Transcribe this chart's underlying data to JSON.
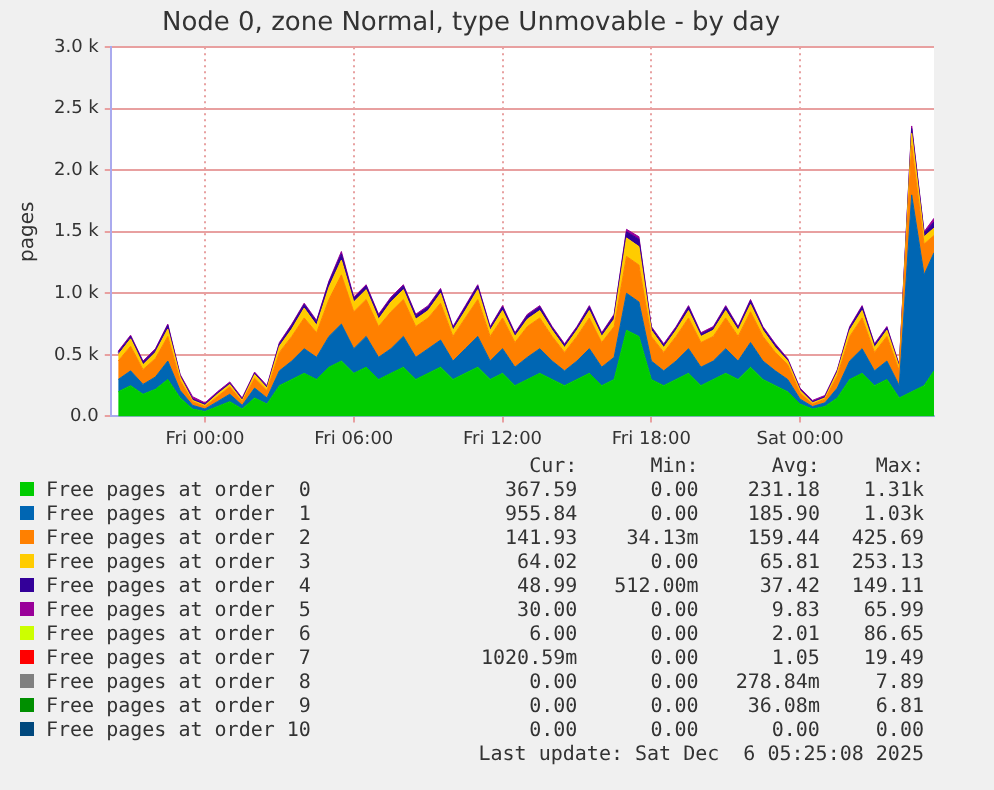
{
  "chart_data": {
    "type": "area",
    "stacked": true,
    "title": "Node 0, zone Normal, type Unmovable - by day",
    "ylabel": "pages",
    "marker": "none",
    "grid": true,
    "legend": "bottom",
    "x": [
      "2025-12-04T20:30",
      "2025-12-04T21:00",
      "2025-12-04T21:30",
      "2025-12-04T22:00",
      "2025-12-04T22:30",
      "2025-12-04T23:00",
      "2025-12-04T23:30",
      "2025-12-05T00:00",
      "2025-12-05T00:30",
      "2025-12-05T01:00",
      "2025-12-05T01:30",
      "2025-12-05T02:00",
      "2025-12-05T02:30",
      "2025-12-05T03:00",
      "2025-12-05T03:30",
      "2025-12-05T04:00",
      "2025-12-05T04:30",
      "2025-12-05T05:00",
      "2025-12-05T05:30",
      "2025-12-05T06:00",
      "2025-12-05T06:30",
      "2025-12-05T07:00",
      "2025-12-05T07:30",
      "2025-12-05T08:00",
      "2025-12-05T08:30",
      "2025-12-05T09:00",
      "2025-12-05T09:30",
      "2025-12-05T10:00",
      "2025-12-05T10:30",
      "2025-12-05T11:00",
      "2025-12-05T11:30",
      "2025-12-05T12:00",
      "2025-12-05T12:30",
      "2025-12-05T13:00",
      "2025-12-05T13:30",
      "2025-12-05T14:00",
      "2025-12-05T14:30",
      "2025-12-05T15:00",
      "2025-12-05T15:30",
      "2025-12-05T16:00",
      "2025-12-05T16:30",
      "2025-12-05T17:00",
      "2025-12-05T17:30",
      "2025-12-05T18:00",
      "2025-12-05T18:30",
      "2025-12-05T19:00",
      "2025-12-05T19:30",
      "2025-12-05T20:00",
      "2025-12-05T20:30",
      "2025-12-05T21:00",
      "2025-12-05T21:30",
      "2025-12-05T22:00",
      "2025-12-05T22:30",
      "2025-12-05T23:00",
      "2025-12-05T23:30",
      "2025-12-06T00:00",
      "2025-12-06T00:30",
      "2025-12-06T01:00",
      "2025-12-06T01:30",
      "2025-12-06T02:00",
      "2025-12-06T02:30",
      "2025-12-06T03:00",
      "2025-12-06T03:30",
      "2025-12-06T04:00",
      "2025-12-06T04:30",
      "2025-12-06T05:00",
      "2025-12-06T05:24"
    ],
    "xlim": [
      "2025-12-04T20:12",
      "2025-12-06T05:24"
    ],
    "xticks": [
      {
        "value": "2025-12-05T00:00",
        "label": "Fri 00:00"
      },
      {
        "value": "2025-12-05T06:00",
        "label": "Fri 06:00"
      },
      {
        "value": "2025-12-05T12:00",
        "label": "Fri 12:00"
      },
      {
        "value": "2025-12-05T18:00",
        "label": "Fri 18:00"
      },
      {
        "value": "2025-12-06T00:00",
        "label": "Sat 00:00"
      }
    ],
    "ylim": [
      0,
      3000
    ],
    "yticks": [
      {
        "value": 0,
        "label": "0.0"
      },
      {
        "value": 500,
        "label": "0.5 k"
      },
      {
        "value": 1000,
        "label": "1.0 k"
      },
      {
        "value": 1500,
        "label": "1.5 k"
      },
      {
        "value": 2000,
        "label": "2.0 k"
      },
      {
        "value": 2500,
        "label": "2.5 k"
      },
      {
        "value": 3000,
        "label": "3.0 k"
      }
    ],
    "series": [
      {
        "name": "Free pages at order  0",
        "color": "#00cc00",
        "values": [
          200,
          250,
          180,
          220,
          300,
          150,
          60,
          40,
          80,
          120,
          60,
          150,
          100,
          250,
          300,
          350,
          300,
          400,
          450,
          350,
          400,
          300,
          350,
          400,
          300,
          350,
          400,
          300,
          350,
          400,
          300,
          350,
          250,
          300,
          350,
          300,
          250,
          300,
          350,
          250,
          300,
          700,
          650,
          300,
          250,
          300,
          350,
          250,
          300,
          350,
          300,
          400,
          300,
          250,
          200,
          100,
          60,
          80,
          150,
          300,
          350,
          250,
          300,
          150,
          200,
          250,
          370
        ]
      },
      {
        "name": "Free pages at order  1",
        "color": "#0066b3",
        "values": [
          100,
          120,
          80,
          100,
          150,
          60,
          30,
          20,
          40,
          60,
          30,
          80,
          50,
          120,
          150,
          200,
          180,
          250,
          300,
          200,
          250,
          180,
          200,
          250,
          180,
          200,
          220,
          150,
          200,
          250,
          150,
          200,
          150,
          180,
          200,
          150,
          120,
          150,
          200,
          150,
          180,
          300,
          280,
          150,
          120,
          150,
          200,
          150,
          150,
          200,
          150,
          200,
          150,
          120,
          100,
          40,
          20,
          30,
          80,
          150,
          200,
          120,
          150,
          100,
          1600,
          900,
          960
        ]
      },
      {
        "name": "Free pages at order  2",
        "color": "#ff8000",
        "values": [
          150,
          200,
          120,
          150,
          200,
          80,
          30,
          20,
          40,
          60,
          30,
          80,
          60,
          150,
          200,
          250,
          200,
          300,
          400,
          300,
          300,
          250,
          300,
          300,
          250,
          250,
          300,
          200,
          250,
          300,
          200,
          250,
          200,
          250,
          250,
          200,
          150,
          200,
          250,
          200,
          250,
          300,
          300,
          200,
          150,
          200,
          250,
          200,
          200,
          250,
          200,
          250,
          200,
          150,
          120,
          50,
          20,
          30,
          100,
          200,
          250,
          150,
          200,
          120,
          400,
          250,
          140
        ]
      },
      {
        "name": "Free pages at order  3",
        "color": "#ffcc00",
        "values": [
          50,
          60,
          40,
          50,
          60,
          30,
          10,
          10,
          20,
          20,
          10,
          30,
          20,
          50,
          60,
          80,
          60,
          100,
          120,
          80,
          80,
          60,
          80,
          80,
          60,
          60,
          80,
          50,
          60,
          80,
          50,
          60,
          50,
          60,
          60,
          50,
          40,
          50,
          60,
          50,
          60,
          150,
          150,
          50,
          40,
          50,
          60,
          50,
          50,
          60,
          50,
          60,
          50,
          40,
          30,
          20,
          10,
          10,
          30,
          50,
          60,
          40,
          50,
          30,
          100,
          60,
          60
        ]
      },
      {
        "name": "Free pages at order  4",
        "color": "#330099",
        "values": [
          20,
          20,
          20,
          20,
          30,
          10,
          10,
          10,
          10,
          10,
          10,
          10,
          10,
          20,
          30,
          30,
          30,
          40,
          50,
          30,
          30,
          30,
          30,
          30,
          30,
          30,
          30,
          20,
          30,
          30,
          20,
          30,
          20,
          30,
          30,
          20,
          20,
          20,
          30,
          20,
          30,
          50,
          60,
          20,
          20,
          20,
          30,
          20,
          20,
          30,
          20,
          30,
          20,
          20,
          10,
          10,
          10,
          10,
          10,
          20,
          30,
          20,
          20,
          10,
          40,
          30,
          50
        ]
      },
      {
        "name": "Free pages at order  5",
        "color": "#990099",
        "values": [
          10,
          10,
          10,
          10,
          10,
          10,
          20,
          10,
          10,
          10,
          10,
          10,
          10,
          10,
          10,
          10,
          10,
          10,
          20,
          10,
          10,
          10,
          10,
          10,
          10,
          10,
          10,
          10,
          10,
          10,
          10,
          10,
          10,
          10,
          10,
          10,
          10,
          10,
          10,
          10,
          10,
          20,
          20,
          10,
          10,
          10,
          10,
          10,
          10,
          10,
          10,
          10,
          10,
          10,
          10,
          10,
          10,
          10,
          10,
          10,
          10,
          10,
          10,
          10,
          20,
          10,
          30
        ]
      },
      {
        "name": "Free pages at order  6",
        "color": "#ccff00",
        "values": [
          null,
          null,
          null,
          null,
          null,
          null,
          null,
          null,
          null,
          null,
          null,
          null,
          null,
          null,
          null,
          null,
          null,
          null,
          null,
          null,
          null,
          null,
          null,
          null,
          null,
          null,
          null,
          null,
          null,
          null,
          null,
          null,
          null,
          null,
          null,
          null,
          null,
          null,
          null,
          null,
          null,
          null,
          null,
          null,
          null,
          null,
          null,
          null,
          null,
          null,
          null,
          null,
          null,
          null,
          null,
          null,
          null,
          null,
          null,
          null,
          null,
          null,
          null,
          null,
          null,
          null,
          null
        ]
      },
      {
        "name": "Free pages at order  7",
        "color": "#ff0000",
        "values": [
          null,
          null,
          null,
          null,
          null,
          null,
          null,
          null,
          null,
          null,
          null,
          null,
          null,
          null,
          null,
          null,
          null,
          null,
          null,
          null,
          null,
          null,
          null,
          null,
          null,
          null,
          null,
          null,
          null,
          null,
          null,
          null,
          null,
          null,
          null,
          null,
          null,
          null,
          null,
          null,
          null,
          null,
          null,
          null,
          null,
          null,
          null,
          null,
          null,
          null,
          null,
          null,
          null,
          null,
          null,
          null,
          null,
          null,
          null,
          null,
          null,
          null,
          null,
          null,
          null,
          null,
          null
        ]
      },
      {
        "name": "Free pages at order  8",
        "color": "#808080",
        "values": [
          null,
          null,
          null,
          null,
          null,
          null,
          null,
          null,
          null,
          null,
          null,
          null,
          null,
          null,
          null,
          null,
          null,
          null,
          null,
          null,
          null,
          null,
          null,
          null,
          null,
          null,
          null,
          null,
          null,
          null,
          null,
          null,
          null,
          null,
          null,
          null,
          null,
          null,
          null,
          null,
          null,
          null,
          null,
          null,
          null,
          null,
          null,
          null,
          null,
          null,
          null,
          null,
          null,
          null,
          null,
          null,
          null,
          null,
          null,
          null,
          null,
          null,
          null,
          null,
          null,
          null,
          null
        ]
      },
      {
        "name": "Free pages at order  9",
        "color": "#008f00",
        "values": [
          null,
          null,
          null,
          null,
          null,
          null,
          null,
          null,
          null,
          null,
          null,
          null,
          null,
          null,
          null,
          null,
          null,
          null,
          null,
          null,
          null,
          null,
          null,
          null,
          null,
          null,
          null,
          null,
          null,
          null,
          null,
          null,
          null,
          null,
          null,
          null,
          null,
          null,
          null,
          null,
          null,
          null,
          null,
          null,
          null,
          null,
          null,
          null,
          null,
          null,
          null,
          null,
          null,
          null,
          null,
          null,
          null,
          null,
          null,
          null,
          null,
          null,
          null,
          null,
          null,
          null,
          null
        ]
      },
      {
        "name": "Free pages at order 10",
        "color": "#00487d",
        "values": [
          null,
          null,
          null,
          null,
          null,
          null,
          null,
          null,
          null,
          null,
          null,
          null,
          null,
          null,
          null,
          null,
          null,
          null,
          null,
          null,
          null,
          null,
          null,
          null,
          null,
          null,
          null,
          null,
          null,
          null,
          null,
          null,
          null,
          null,
          null,
          null,
          null,
          null,
          null,
          null,
          null,
          null,
          null,
          null,
          null,
          null,
          null,
          null,
          null,
          null,
          null,
          null,
          null,
          null,
          null,
          null,
          null,
          null,
          null,
          null,
          null,
          null,
          null,
          null,
          null,
          null,
          null
        ]
      }
    ],
    "annotations": [
      "Cur:",
      "Min:",
      "Avg:",
      "Max:",
      "367.59",
      "0.00",
      "231.18",
      "1.31k",
      "955.84",
      "0.00",
      "185.90",
      "1.03k",
      "141.93",
      "34.13m",
      "159.44",
      "425.69",
      "64.02",
      "0.00",
      "65.81",
      "253.13",
      "48.99",
      "512.00m",
      "37.42",
      "149.11",
      "30.00",
      "0.00",
      "9.83",
      "65.99",
      "6.00",
      "0.00",
      "2.01",
      "86.65",
      "1020.59m",
      "0.00",
      "1.05",
      "19.49",
      "0.00",
      "0.00",
      "278.84m",
      "7.89",
      "0.00",
      "0.00",
      "36.08m",
      "6.81",
      "0.00",
      "0.00",
      "0.00",
      "0.00",
      "Last update: Sat Dec  6 05:25:08 2025"
    ]
  }
}
